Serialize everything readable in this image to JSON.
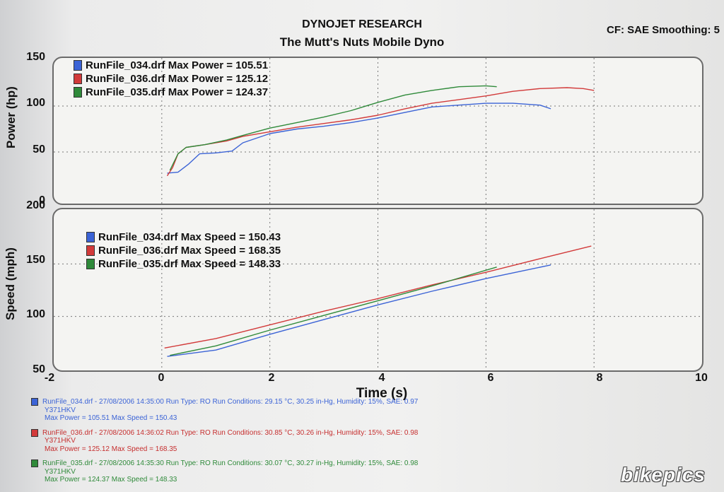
{
  "header": {
    "title": "DYNOJET RESEARCH",
    "subtitle": "The Mutt's Nuts Mobile Dyno",
    "settings": "CF: SAE  Smoothing: 5"
  },
  "colors": {
    "blue": "#3b63d6",
    "red": "#d23a3a",
    "green": "#2f8a3a",
    "grid": "#777777"
  },
  "chart_data": [
    {
      "type": "line",
      "ylabel": "Power (hp)",
      "xlabel": "Time (s)",
      "xlim": [
        -2,
        10
      ],
      "ylim": [
        0,
        150
      ],
      "x_ticks": [
        "-2",
        "0",
        "2",
        "4",
        "6",
        "8",
        "10"
      ],
      "y_ticks": [
        "0",
        "50",
        "100",
        "150"
      ],
      "grid": true,
      "legend": [
        "RunFile_034.drf Max Power = 105.51",
        "RunFile_036.drf Max Power = 125.12",
        "RunFile_035.drf Max Power = 124.37"
      ],
      "series": [
        {
          "name": "RunFile_034.drf",
          "color": "blue",
          "points": [
            [
              0.1,
              27
            ],
            [
              0.3,
              28
            ],
            [
              0.5,
              37
            ],
            [
              0.7,
              48
            ],
            [
              1.0,
              49
            ],
            [
              1.3,
              51
            ],
            [
              1.5,
              60
            ],
            [
              2.0,
              70
            ],
            [
              2.5,
              75
            ],
            [
              3.0,
              78
            ],
            [
              3.5,
              82
            ],
            [
              4.0,
              87
            ],
            [
              4.5,
              93
            ],
            [
              5.0,
              99
            ],
            [
              5.5,
              101
            ],
            [
              6.0,
              103
            ],
            [
              6.5,
              103
            ],
            [
              7.0,
              101
            ],
            [
              7.2,
              97
            ]
          ]
        },
        {
          "name": "RunFile_036.drf",
          "color": "red",
          "points": [
            [
              0.1,
              24
            ],
            [
              0.2,
              33
            ],
            [
              0.3,
              48
            ],
            [
              0.45,
              55
            ],
            [
              0.8,
              58
            ],
            [
              1.2,
              62
            ],
            [
              1.5,
              67
            ],
            [
              2.0,
              72
            ],
            [
              2.5,
              77
            ],
            [
              3.0,
              81
            ],
            [
              3.5,
              85
            ],
            [
              4.0,
              90
            ],
            [
              4.5,
              97
            ],
            [
              5.0,
              103
            ],
            [
              5.5,
              107
            ],
            [
              6.0,
              111
            ],
            [
              6.5,
              116
            ],
            [
              7.0,
              119
            ],
            [
              7.5,
              120
            ],
            [
              7.8,
              119
            ],
            [
              8.0,
              117
            ]
          ]
        },
        {
          "name": "RunFile_035.drf",
          "color": "green",
          "points": [
            [
              0.15,
              30
            ],
            [
              0.3,
              48
            ],
            [
              0.45,
              55
            ],
            [
              0.8,
              58
            ],
            [
              1.2,
              63
            ],
            [
              1.5,
              68
            ],
            [
              2.0,
              76
            ],
            [
              2.5,
              82
            ],
            [
              3.0,
              88
            ],
            [
              3.5,
              95
            ],
            [
              4.0,
              104
            ],
            [
              4.5,
              112
            ],
            [
              5.0,
              117
            ],
            [
              5.5,
              121
            ],
            [
              6.0,
              122
            ],
            [
              6.2,
              121
            ]
          ]
        }
      ]
    },
    {
      "type": "line",
      "ylabel": "Speed (mph)",
      "xlabel": "Time (s)",
      "xlim": [
        -2,
        10
      ],
      "ylim": [
        50,
        200
      ],
      "x_ticks": [
        "-2",
        "0",
        "2",
        "4",
        "6",
        "8",
        "10"
      ],
      "y_ticks": [
        "50",
        "100",
        "150",
        "200"
      ],
      "grid": true,
      "legend": [
        "RunFile_034.drf Max Speed = 150.43",
        "RunFile_036.drf Max Speed = 168.35",
        "RunFile_035.drf Max Speed = 148.33"
      ],
      "series": [
        {
          "name": "RunFile_034.drf",
          "color": "blue",
          "points": [
            [
              0.1,
              62
            ],
            [
              1.0,
              68
            ],
            [
              2.0,
              83
            ],
            [
              3.0,
              97
            ],
            [
              4.0,
              111
            ],
            [
              5.0,
              124
            ],
            [
              6.0,
              136
            ],
            [
              7.2,
              149
            ]
          ]
        },
        {
          "name": "RunFile_036.drf",
          "color": "red",
          "points": [
            [
              0.05,
              70
            ],
            [
              1.0,
              79
            ],
            [
              2.0,
              92
            ],
            [
              3.0,
              105
            ],
            [
              4.0,
              117
            ],
            [
              5.0,
              130
            ],
            [
              6.0,
              142
            ],
            [
              7.0,
              155
            ],
            [
              7.95,
              167
            ]
          ]
        },
        {
          "name": "RunFile_035.drf",
          "color": "green",
          "points": [
            [
              0.15,
              63
            ],
            [
              1.0,
              72
            ],
            [
              2.0,
              87
            ],
            [
              3.0,
              101
            ],
            [
              4.0,
              115
            ],
            [
              5.0,
              129
            ],
            [
              6.2,
              147
            ]
          ]
        }
      ]
    }
  ],
  "run_info": [
    {
      "color": "blue",
      "line1": "RunFile_034.drf - 27/08/2006 14:35:00  Run Type: RO  Run Conditions: 29.15 °C, 30.25 in-Hg,  Humidity: 15%, SAE: 0.97",
      "line2": "Y371HKV",
      "line3": "Max Power = 105.51  Max Speed = 150.43"
    },
    {
      "color": "red",
      "line1": "RunFile_036.drf - 27/08/2006 14:36:02  Run Type: RO  Run Conditions: 30.85 °C, 30.26 in-Hg,  Humidity: 15%, SAE: 0.98",
      "line2": "Y371HKV",
      "line3": "Max Power = 125.12  Max Speed = 168.35"
    },
    {
      "color": "green",
      "line1": "RunFile_035.drf - 27/08/2006 14:35:30  Run Type: RO  Run Conditions: 30.07 °C, 30.27 in-Hg,  Humidity: 15%, SAE: 0.98",
      "line2": "Y371HKV",
      "line3": "Max Power = 124.37  Max Speed = 148.33"
    }
  ],
  "watermark": "bikepics"
}
